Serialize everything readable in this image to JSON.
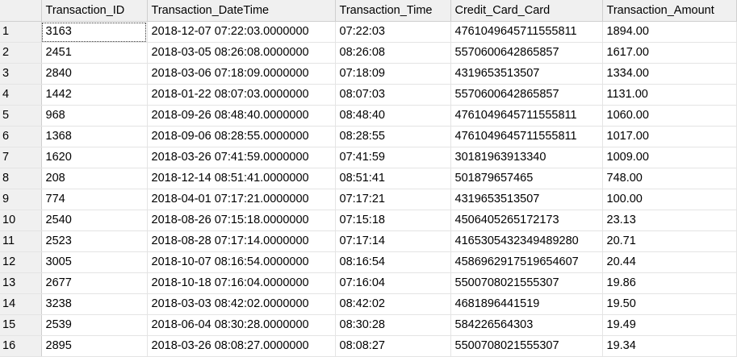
{
  "columns": [
    "Transaction_ID",
    "Transaction_DateTime",
    "Transaction_Time",
    "Credit_Card_Card",
    "Transaction_Amount"
  ],
  "rows": [
    {
      "n": "1",
      "cells": [
        "3163",
        "2018-12-07 07:22:03.0000000",
        "07:22:03",
        "4761049645711555811",
        "1894.00"
      ]
    },
    {
      "n": "2",
      "cells": [
        "2451",
        "2018-03-05 08:26:08.0000000",
        "08:26:08",
        "5570600642865857",
        "1617.00"
      ]
    },
    {
      "n": "3",
      "cells": [
        "2840",
        "2018-03-06 07:18:09.0000000",
        "07:18:09",
        "4319653513507",
        "1334.00"
      ]
    },
    {
      "n": "4",
      "cells": [
        "1442",
        "2018-01-22 08:07:03.0000000",
        "08:07:03",
        "5570600642865857",
        "1131.00"
      ]
    },
    {
      "n": "5",
      "cells": [
        "968",
        "2018-09-26 08:48:40.0000000",
        "08:48:40",
        "4761049645711555811",
        "1060.00"
      ]
    },
    {
      "n": "6",
      "cells": [
        "1368",
        "2018-09-06 08:28:55.0000000",
        "08:28:55",
        "4761049645711555811",
        "1017.00"
      ]
    },
    {
      "n": "7",
      "cells": [
        "1620",
        "2018-03-26 07:41:59.0000000",
        "07:41:59",
        "30181963913340",
        "1009.00"
      ]
    },
    {
      "n": "8",
      "cells": [
        "208",
        "2018-12-14 08:51:41.0000000",
        "08:51:41",
        "501879657465",
        "748.00"
      ]
    },
    {
      "n": "9",
      "cells": [
        "774",
        "2018-04-01 07:17:21.0000000",
        "07:17:21",
        "4319653513507",
        "100.00"
      ]
    },
    {
      "n": "10",
      "cells": [
        "2540",
        "2018-08-26 07:15:18.0000000",
        "07:15:18",
        "4506405265172173",
        "23.13"
      ]
    },
    {
      "n": "11",
      "cells": [
        "2523",
        "2018-08-28 07:17:14.0000000",
        "07:17:14",
        "4165305432349489280",
        "20.71"
      ]
    },
    {
      "n": "12",
      "cells": [
        "3005",
        "2018-10-07 08:16:54.0000000",
        "08:16:54",
        "4586962917519654607",
        "20.44"
      ]
    },
    {
      "n": "13",
      "cells": [
        "2677",
        "2018-10-18 07:16:04.0000000",
        "07:16:04",
        "5500708021555307",
        "19.86"
      ]
    },
    {
      "n": "14",
      "cells": [
        "3238",
        "2018-03-03 08:42:02.0000000",
        "08:42:02",
        "4681896441519",
        "19.50"
      ]
    },
    {
      "n": "15",
      "cells": [
        "2539",
        "2018-06-04 08:30:28.0000000",
        "08:30:28",
        "584226564303",
        "19.49"
      ]
    },
    {
      "n": "16",
      "cells": [
        "2895",
        "2018-03-26 08:08:27.0000000",
        "08:08:27",
        "5500708021555307",
        "19.34"
      ]
    }
  ]
}
